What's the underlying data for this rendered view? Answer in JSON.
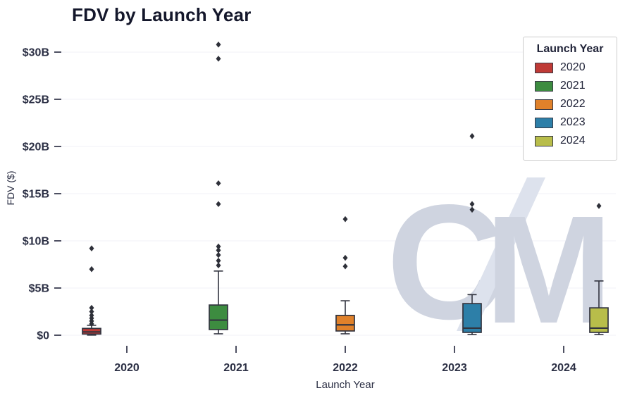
{
  "chart_data": {
    "type": "box",
    "title": "FDV by Launch Year",
    "xlabel": "Launch Year",
    "ylabel": "FDV ($)",
    "units": "billions USD",
    "categories": [
      "2020",
      "2021",
      "2022",
      "2023",
      "2024"
    ],
    "yticks": [
      0,
      5,
      10,
      15,
      20,
      25,
      30
    ],
    "ytick_labels": [
      "$0",
      "$5B",
      "$10B",
      "$15B",
      "$20B",
      "$25B",
      "$30B"
    ],
    "ylim": [
      -1.2,
      31.5
    ],
    "grid": "faint horizontal gridlines",
    "legend_title": "Launch Year",
    "legend_position": "upper right",
    "watermark": "CM",
    "style": {
      "box_edge": "#32343f",
      "outlier": "#2e3039",
      "tick_text": "#2b2f44",
      "watermark_letters": "#cfd4e0",
      "watermark_slash": "#dde2ed",
      "gridline": "#f1f2f7"
    },
    "series": [
      {
        "name": "2020",
        "color": "#bf3a36",
        "box": {
          "whisker_low": 0.01,
          "q1": 0.12,
          "median": 0.35,
          "q3": 0.72,
          "whisker_high": 1.05
        },
        "outliers": [
          1.2,
          1.5,
          1.8,
          2.1,
          2.5,
          2.9,
          7.0,
          9.2
        ]
      },
      {
        "name": "2021",
        "color": "#3d8c40",
        "box": {
          "whisker_low": 0.15,
          "q1": 0.6,
          "median": 1.6,
          "q3": 3.2,
          "whisker_high": 6.8
        },
        "outliers": [
          7.4,
          7.9,
          8.5,
          9.0,
          9.4,
          13.9,
          16.1,
          29.3,
          30.8
        ]
      },
      {
        "name": "2022",
        "color": "#e0812a",
        "box": {
          "whisker_low": 0.15,
          "q1": 0.45,
          "median": 1.1,
          "q3": 2.1,
          "whisker_high": 3.65
        },
        "outliers": [
          7.3,
          8.2,
          12.3
        ]
      },
      {
        "name": "2023",
        "color": "#2d7fa8",
        "box": {
          "whisker_low": 0.07,
          "q1": 0.3,
          "median": 0.75,
          "q3": 3.35,
          "whisker_high": 4.3
        },
        "outliers": [
          13.3,
          13.9,
          21.1
        ]
      },
      {
        "name": "2024",
        "color": "#b8bd4a",
        "box": {
          "whisker_low": 0.07,
          "q1": 0.3,
          "median": 0.75,
          "q3": 2.9,
          "whisker_high": 5.75
        },
        "outliers": [
          13.7
        ]
      }
    ]
  }
}
